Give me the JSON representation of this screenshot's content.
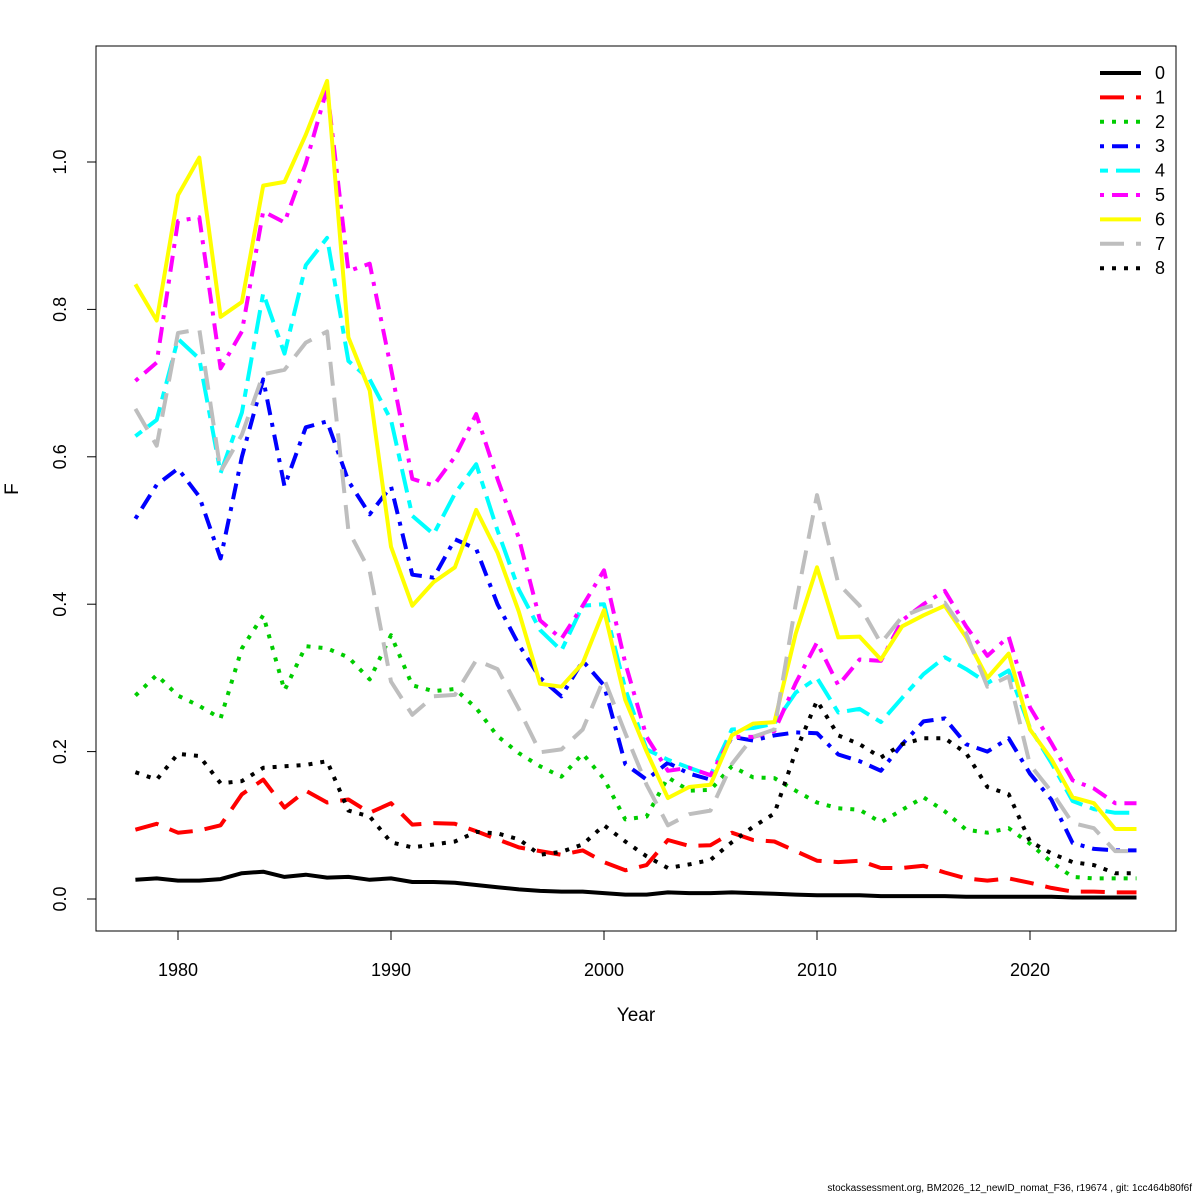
{
  "chart_data": {
    "type": "line",
    "xlabel": "Year",
    "ylabel": "F",
    "xlim": [
      1978,
      2025
    ],
    "ylim": [
      0,
      1.1
    ],
    "x_ticks": [
      1980,
      1990,
      2000,
      2010,
      2020
    ],
    "y_ticks": [
      "0.0",
      "0.2",
      "0.4",
      "0.6",
      "0.8",
      "1.0"
    ],
    "grid": false,
    "legend_position": "top-right",
    "x": [
      1978,
      1979,
      1980,
      1981,
      1982,
      1983,
      1984,
      1985,
      1986,
      1987,
      1988,
      1989,
      1990,
      1991,
      1992,
      1993,
      1994,
      1995,
      1996,
      1997,
      1998,
      1999,
      2000,
      2001,
      2002,
      2003,
      2004,
      2005,
      2006,
      2007,
      2008,
      2009,
      2010,
      2011,
      2012,
      2013,
      2014,
      2015,
      2016,
      2017,
      2018,
      2019,
      2020,
      2021,
      2022,
      2023,
      2024,
      2025
    ],
    "series": [
      {
        "name": "0",
        "color": "#000000",
        "dash": "solid",
        "values": [
          0.026,
          0.028,
          0.025,
          0.025,
          0.027,
          0.035,
          0.037,
          0.03,
          0.033,
          0.029,
          0.03,
          0.026,
          0.028,
          0.023,
          0.023,
          0.022,
          0.019,
          0.016,
          0.013,
          0.011,
          0.01,
          0.01,
          0.008,
          0.006,
          0.006,
          0.009,
          0.008,
          0.008,
          0.009,
          0.008,
          0.007,
          0.006,
          0.005,
          0.005,
          0.005,
          0.004,
          0.004,
          0.004,
          0.004,
          0.003,
          0.003,
          0.003,
          0.003,
          0.003,
          0.002,
          0.002,
          0.002,
          0.002
        ]
      },
      {
        "name": "1",
        "color": "#ff0000",
        "dash": "longdash",
        "values": [
          0.094,
          0.102,
          0.09,
          0.093,
          0.1,
          0.142,
          0.162,
          0.124,
          0.147,
          0.131,
          0.135,
          0.117,
          0.13,
          0.101,
          0.103,
          0.102,
          0.092,
          0.081,
          0.07,
          0.065,
          0.06,
          0.066,
          0.05,
          0.039,
          0.046,
          0.08,
          0.072,
          0.073,
          0.09,
          0.08,
          0.078,
          0.065,
          0.052,
          0.05,
          0.052,
          0.042,
          0.042,
          0.045,
          0.036,
          0.028,
          0.025,
          0.028,
          0.022,
          0.015,
          0.01,
          0.01,
          0.009,
          0.009
        ]
      },
      {
        "name": "2",
        "color": "#00cd00",
        "dash": "dotted",
        "values": [
          0.276,
          0.304,
          0.276,
          0.262,
          0.245,
          0.34,
          0.385,
          0.283,
          0.343,
          0.34,
          0.328,
          0.298,
          0.358,
          0.29,
          0.282,
          0.285,
          0.259,
          0.221,
          0.198,
          0.18,
          0.166,
          0.197,
          0.163,
          0.108,
          0.112,
          0.165,
          0.147,
          0.148,
          0.18,
          0.165,
          0.164,
          0.147,
          0.131,
          0.123,
          0.121,
          0.104,
          0.121,
          0.138,
          0.119,
          0.094,
          0.09,
          0.096,
          0.075,
          0.05,
          0.03,
          0.028,
          0.028,
          0.028
        ]
      },
      {
        "name": "3",
        "color": "#0000ff",
        "dash": "dotdash",
        "values": [
          0.516,
          0.562,
          0.584,
          0.546,
          0.462,
          0.6,
          0.705,
          0.56,
          0.64,
          0.648,
          0.567,
          0.522,
          0.56,
          0.44,
          0.436,
          0.488,
          0.475,
          0.4,
          0.345,
          0.3,
          0.275,
          0.323,
          0.29,
          0.183,
          0.162,
          0.185,
          0.17,
          0.162,
          0.22,
          0.215,
          0.222,
          0.226,
          0.225,
          0.196,
          0.187,
          0.174,
          0.21,
          0.241,
          0.245,
          0.21,
          0.2,
          0.218,
          0.17,
          0.135,
          0.076,
          0.068,
          0.066,
          0.066
        ]
      },
      {
        "name": "4",
        "color": "#00ffff",
        "dash": "twodash",
        "values": [
          0.628,
          0.65,
          0.76,
          0.733,
          0.578,
          0.66,
          0.822,
          0.74,
          0.86,
          0.897,
          0.73,
          0.705,
          0.65,
          0.52,
          0.495,
          0.55,
          0.59,
          0.5,
          0.42,
          0.365,
          0.337,
          0.398,
          0.4,
          0.285,
          0.203,
          0.189,
          0.178,
          0.168,
          0.23,
          0.232,
          0.238,
          0.28,
          0.3,
          0.253,
          0.258,
          0.24,
          0.273,
          0.305,
          0.328,
          0.312,
          0.293,
          0.31,
          0.232,
          0.185,
          0.133,
          0.122,
          0.117,
          0.117
        ]
      },
      {
        "name": "5",
        "color": "#ff00ff",
        "dash": "dotdash",
        "values": [
          0.703,
          0.728,
          0.92,
          0.925,
          0.72,
          0.77,
          0.933,
          0.918,
          0.998,
          1.1,
          0.852,
          0.862,
          0.72,
          0.57,
          0.561,
          0.6,
          0.658,
          0.57,
          0.49,
          0.378,
          0.353,
          0.398,
          0.446,
          0.32,
          0.22,
          0.174,
          0.178,
          0.168,
          0.22,
          0.22,
          0.228,
          0.293,
          0.348,
          0.29,
          0.325,
          0.323,
          0.378,
          0.4,
          0.418,
          0.37,
          0.33,
          0.356,
          0.26,
          0.212,
          0.161,
          0.15,
          0.13,
          0.13
        ]
      },
      {
        "name": "6",
        "color": "#ffff00",
        "dash": "solid",
        "values": [
          0.834,
          0.785,
          0.955,
          1.006,
          0.79,
          0.81,
          0.968,
          0.973,
          1.037,
          1.11,
          0.762,
          0.69,
          0.478,
          0.398,
          0.43,
          0.45,
          0.528,
          0.47,
          0.39,
          0.292,
          0.288,
          0.32,
          0.392,
          0.27,
          0.2,
          0.137,
          0.152,
          0.155,
          0.222,
          0.238,
          0.24,
          0.36,
          0.45,
          0.355,
          0.356,
          0.325,
          0.37,
          0.385,
          0.398,
          0.355,
          0.3,
          0.333,
          0.23,
          0.19,
          0.138,
          0.13,
          0.095,
          0.095
        ]
      },
      {
        "name": "7",
        "color": "#bebebe",
        "dash": "longdash",
        "values": [
          0.665,
          0.615,
          0.768,
          0.773,
          0.58,
          0.63,
          0.712,
          0.718,
          0.755,
          0.77,
          0.5,
          0.445,
          0.295,
          0.25,
          0.275,
          0.277,
          0.324,
          0.312,
          0.258,
          0.199,
          0.203,
          0.23,
          0.299,
          0.225,
          0.155,
          0.1,
          0.115,
          0.12,
          0.183,
          0.22,
          0.23,
          0.4,
          0.548,
          0.428,
          0.398,
          0.347,
          0.383,
          0.395,
          0.402,
          0.36,
          0.288,
          0.302,
          0.182,
          0.146,
          0.103,
          0.096,
          0.065,
          0.065
        ]
      },
      {
        "name": "8",
        "color": "#000000",
        "dash": "dotted",
        "values": [
          0.172,
          0.162,
          0.197,
          0.194,
          0.157,
          0.16,
          0.178,
          0.18,
          0.182,
          0.187,
          0.12,
          0.112,
          0.077,
          0.07,
          0.074,
          0.078,
          0.091,
          0.089,
          0.081,
          0.06,
          0.064,
          0.074,
          0.1,
          0.078,
          0.058,
          0.042,
          0.047,
          0.053,
          0.077,
          0.098,
          0.116,
          0.2,
          0.269,
          0.222,
          0.21,
          0.192,
          0.21,
          0.218,
          0.218,
          0.198,
          0.152,
          0.142,
          0.078,
          0.062,
          0.05,
          0.046,
          0.035,
          0.035
        ]
      }
    ]
  },
  "footer": {
    "text": "stockassessment.org, BM2026_12_newID_nomat_F36, r19674 , git: 1cc464b80f6f"
  }
}
